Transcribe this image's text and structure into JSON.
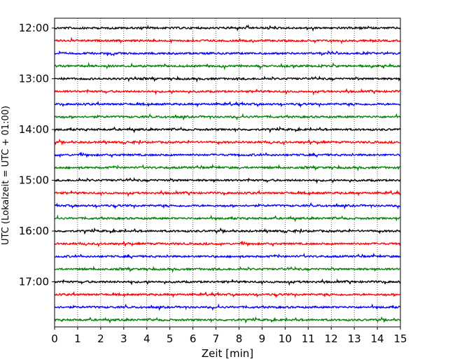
{
  "chart_data": {
    "type": "line",
    "title": "",
    "xlabel": "Zeit  [min]",
    "ylabel": "UTC (Lokalzeit = UTC + 01:00)",
    "xlim": [
      0,
      15
    ],
    "x_ticks": [
      "0",
      "1",
      "2",
      "3",
      "4",
      "5",
      "6",
      "7",
      "8",
      "9",
      "10",
      "11",
      "12",
      "13",
      "14",
      "15"
    ],
    "y_ticks": [
      {
        "label": "12:00",
        "row": 0
      },
      {
        "label": "13:00",
        "row": 4
      },
      {
        "label": "14:00",
        "row": 8
      },
      {
        "label": "15:00",
        "row": 12
      },
      {
        "label": "16:00",
        "row": 16
      },
      {
        "label": "17:00",
        "row": 20
      }
    ],
    "grid": "vertical dotted",
    "rows_per_hour": 4,
    "minutes_per_row": 15,
    "row_count": 24,
    "start_time": "12:00",
    "colors": [
      "#000000",
      "#ff0000",
      "#0000ff",
      "#008000"
    ],
    "signal": "noise-like seismic trace; individual amplitudes not readable"
  }
}
